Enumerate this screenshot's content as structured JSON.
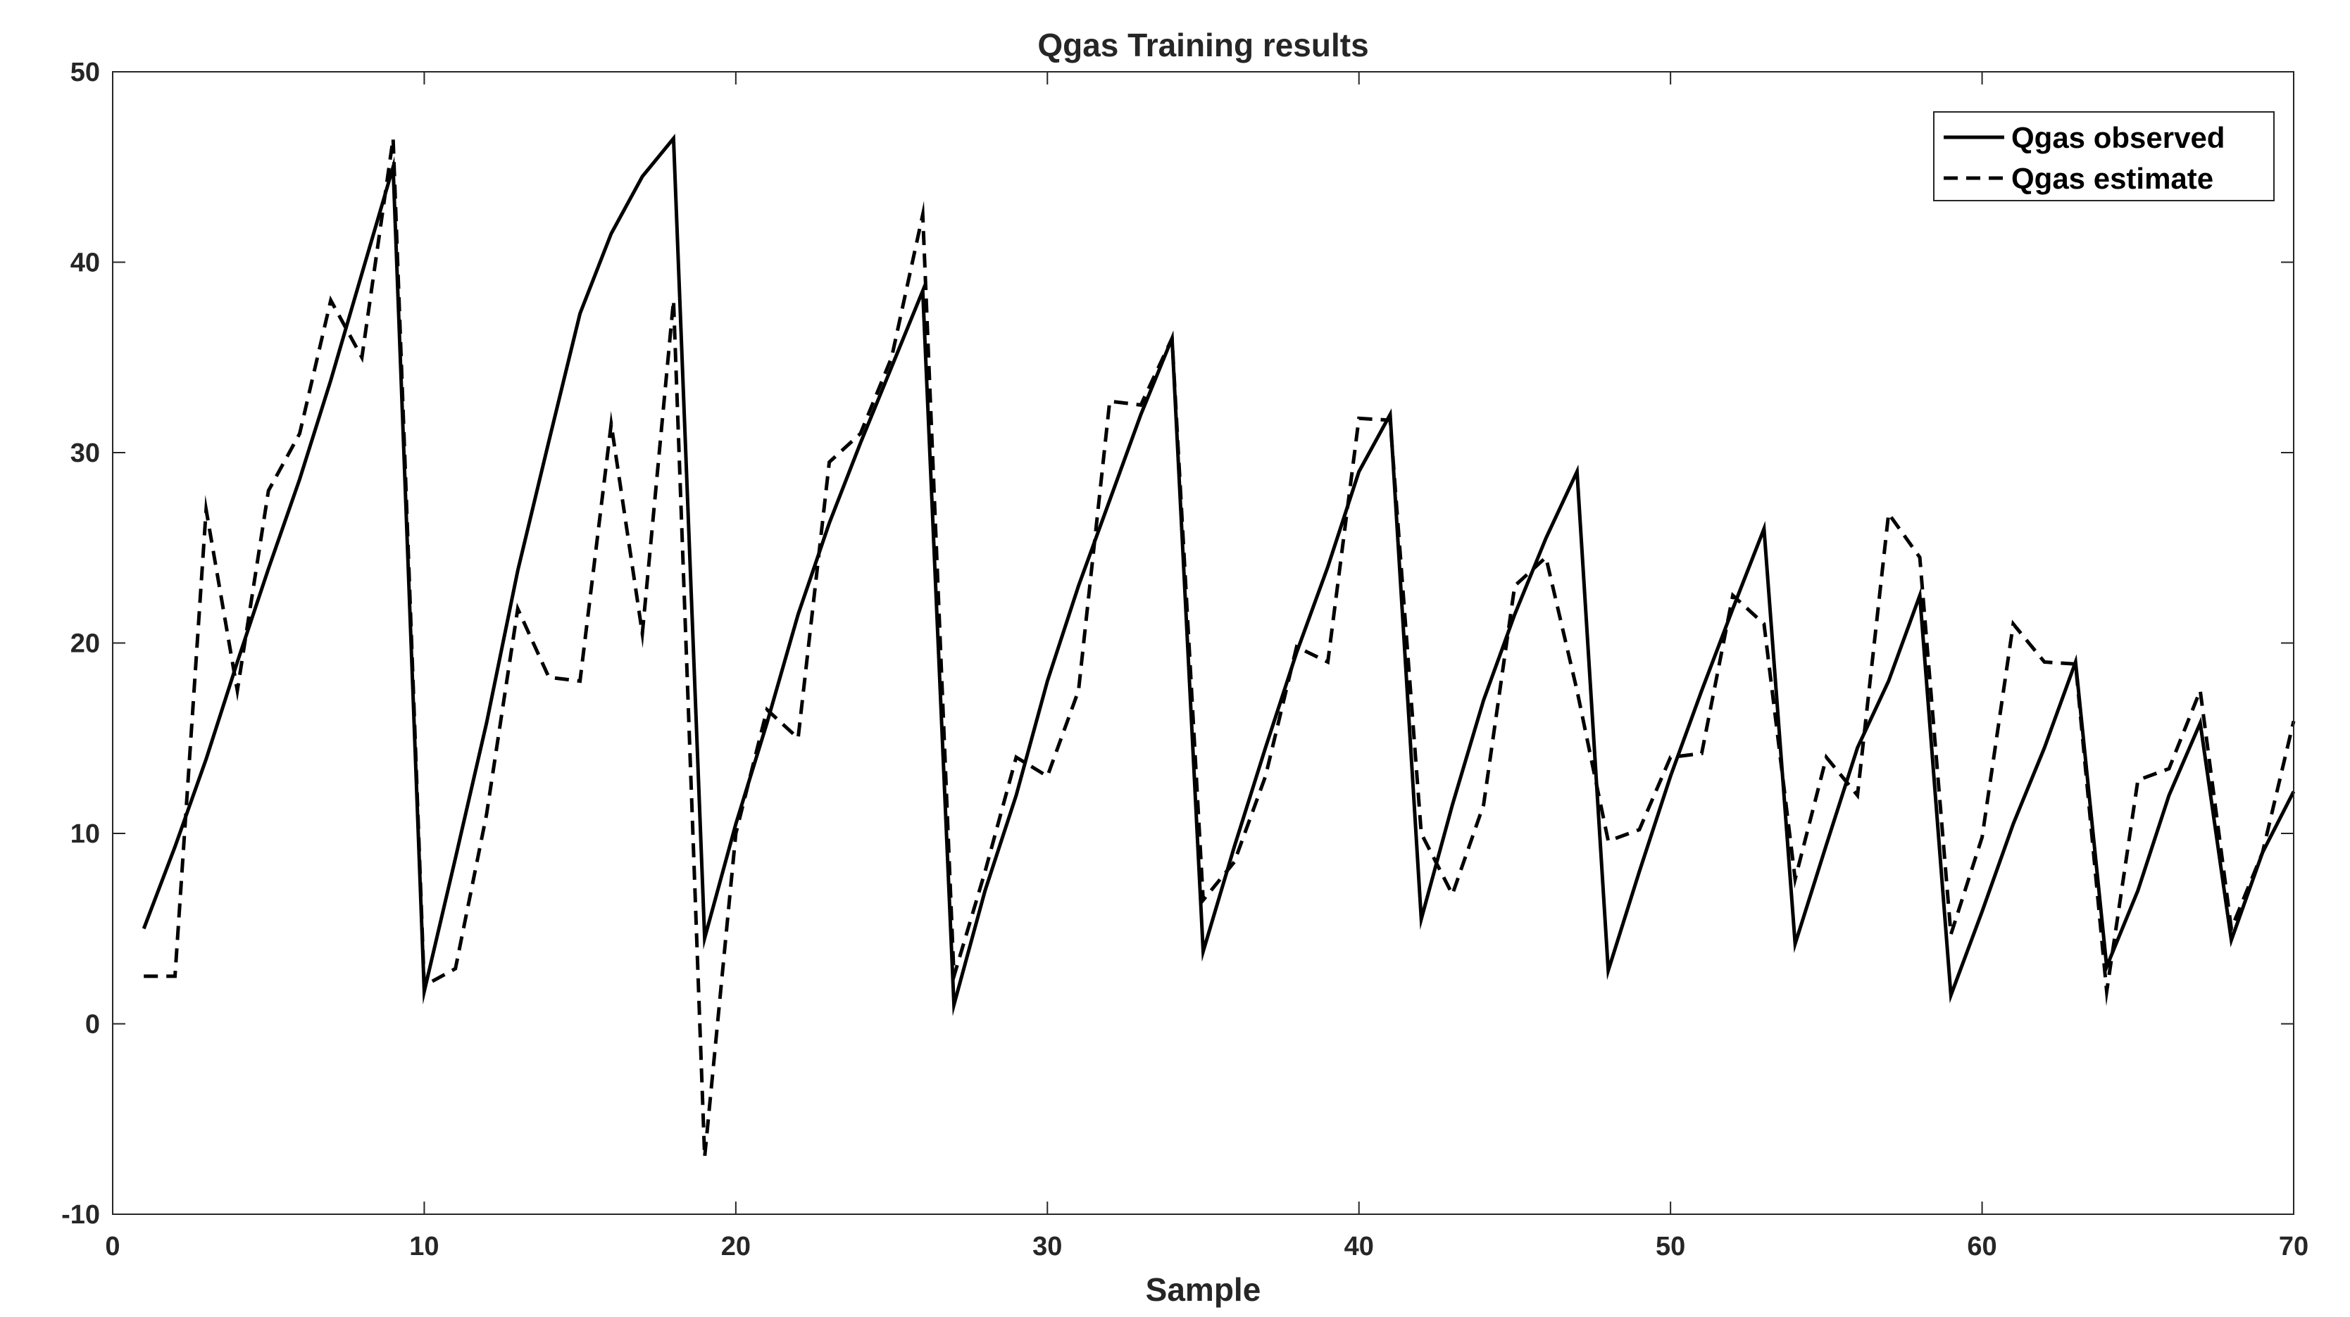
{
  "chart_data": {
    "type": "line",
    "title": "Qgas Training results",
    "xlabel": "Sample",
    "ylabel": "",
    "xlim": [
      0,
      70
    ],
    "ylim": [
      -10,
      50
    ],
    "xticks": [
      0,
      10,
      20,
      30,
      40,
      50,
      60,
      70
    ],
    "yticks": [
      -10,
      0,
      10,
      20,
      30,
      40,
      50
    ],
    "grid": false,
    "legend_position": "top-right",
    "series": [
      {
        "name": "Qgas observed",
        "style": "solid",
        "color": "#000000",
        "x": [
          1,
          2,
          3,
          4,
          5,
          6,
          7,
          8,
          9,
          10,
          11,
          12,
          13,
          14,
          15,
          16,
          17,
          18,
          19,
          20,
          21,
          22,
          23,
          24,
          25,
          26,
          27,
          28,
          29,
          30,
          31,
          32,
          33,
          34,
          35,
          36,
          37,
          38,
          39,
          40,
          41,
          42,
          43,
          44,
          45,
          46,
          47,
          48,
          49,
          50,
          51,
          52,
          53,
          54,
          55,
          56,
          57,
          58,
          59,
          60,
          61,
          62,
          63,
          64,
          65,
          66,
          67,
          68,
          69,
          70
        ],
        "values": [
          5,
          9.3,
          13.9,
          19,
          23.9,
          28.6,
          33.8,
          39.4,
          45,
          1.7,
          8.7,
          15.8,
          23.8,
          30.6,
          37.3,
          41.5,
          44.5,
          46.5,
          4.5,
          10.5,
          15.8,
          21.5,
          26.3,
          30.5,
          34.5,
          38.5,
          1,
          7,
          12,
          18,
          23,
          27.5,
          32,
          36,
          3.8,
          9.3,
          14.5,
          19.5,
          24,
          29,
          32,
          5.5,
          11.5,
          17,
          21.5,
          25.5,
          29,
          2.8,
          8,
          13,
          17.5,
          21.8,
          26,
          4.2,
          9.4,
          14.5,
          18,
          22.5,
          1.5,
          5.9,
          10.5,
          14.5,
          19,
          3,
          7,
          12,
          15.8,
          4.4,
          9,
          12.2
        ]
      },
      {
        "name": "Qgas estimate",
        "style": "dashed",
        "color": "#000000",
        "x": [
          1,
          2,
          3,
          4,
          5,
          6,
          7,
          8,
          9,
          10,
          11,
          12,
          13,
          14,
          15,
          16,
          17,
          18,
          19,
          20,
          21,
          22,
          23,
          24,
          25,
          26,
          27,
          28,
          29,
          30,
          31,
          32,
          33,
          34,
          35,
          36,
          37,
          38,
          39,
          40,
          41,
          42,
          43,
          44,
          45,
          46,
          47,
          48,
          49,
          50,
          51,
          52,
          53,
          54,
          55,
          56,
          57,
          58,
          59,
          60,
          61,
          62,
          63,
          64,
          65,
          66,
          67,
          68,
          69,
          70
        ],
        "values": [
          2.5,
          2.5,
          27,
          17.5,
          28,
          31,
          38,
          35,
          46.5,
          2,
          2.9,
          11,
          21.8,
          18.2,
          18,
          31.5,
          20.5,
          38,
          -7,
          10,
          16.5,
          15,
          29.5,
          31,
          35,
          42.5,
          2.5,
          8,
          14,
          13,
          17.5,
          32.7,
          32.5,
          36,
          6.5,
          8.5,
          13,
          19.8,
          19,
          31.8,
          31.7,
          10,
          6.8,
          11.5,
          23,
          24.5,
          17.5,
          9.6,
          10.2,
          14,
          14.2,
          22.5,
          21,
          7.6,
          14,
          12,
          26.8,
          24.5,
          4.7,
          9.8,
          21,
          19,
          18.9,
          1.7,
          12.8,
          13.4,
          17.5,
          5,
          9,
          15.9
        ]
      }
    ]
  }
}
